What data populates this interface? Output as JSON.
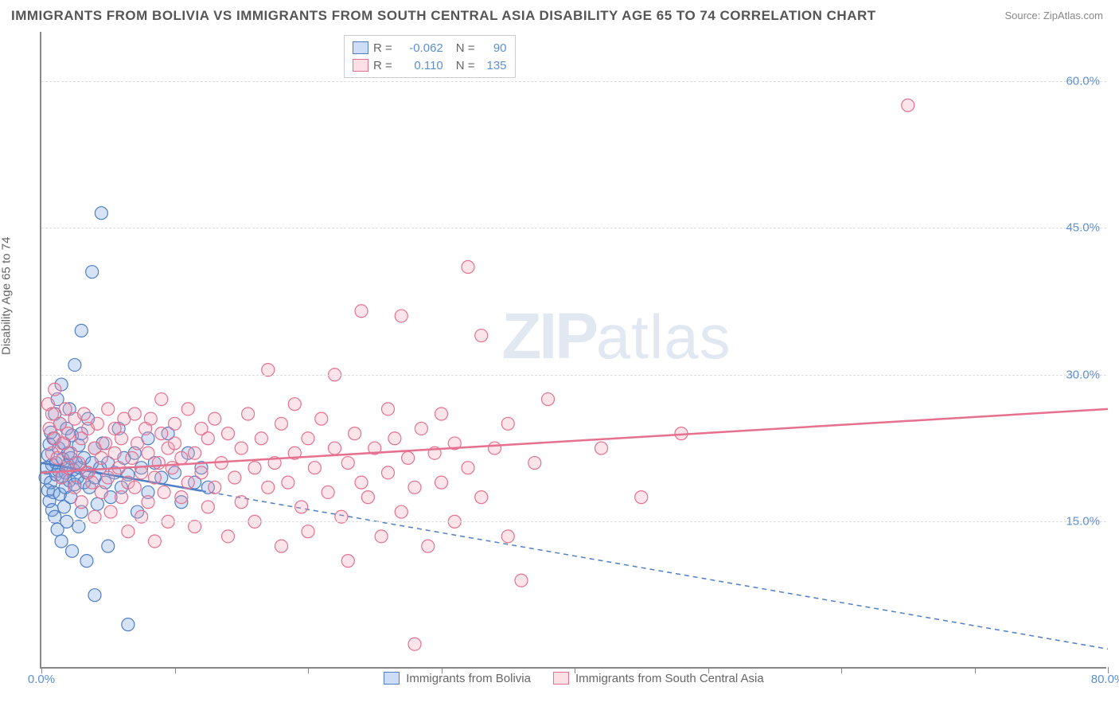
{
  "title": "IMMIGRANTS FROM BOLIVIA VS IMMIGRANTS FROM SOUTH CENTRAL ASIA DISABILITY AGE 65 TO 74 CORRELATION CHART",
  "source": "Source: ZipAtlas.com",
  "ylabel": "Disability Age 65 to 74",
  "watermark_zip": "ZIP",
  "watermark_atlas": "atlas",
  "chart": {
    "type": "scatter",
    "xlim": [
      0,
      80
    ],
    "ylim": [
      0,
      65
    ],
    "x_ticks": [
      0,
      10,
      20,
      30,
      40,
      50,
      60,
      70,
      80
    ],
    "x_tick_labels": {
      "0": "0.0%",
      "80": "80.0%"
    },
    "y_ticks": [
      15,
      30,
      45,
      60
    ],
    "y_tick_labels": {
      "15": "15.0%",
      "30": "30.0%",
      "45": "45.0%",
      "60": "60.0%"
    },
    "background_color": "#ffffff",
    "grid_color": "#dddddd",
    "marker_radius": 8,
    "marker_fill_opacity": 0.28,
    "series": [
      {
        "key": "bolivia",
        "label": "Immigrants from Bolivia",
        "color": "#6a9ae0",
        "stroke": "#4f7fc4",
        "r_value": "-0.062",
        "n_value": "90",
        "trend": {
          "x1": 0,
          "y1": 21.0,
          "x2": 80,
          "y2": 2.0,
          "dash_after_x": 12
        },
        "points": [
          [
            0.3,
            19.5
          ],
          [
            0.4,
            20.5
          ],
          [
            0.5,
            18.2
          ],
          [
            0.5,
            21.8
          ],
          [
            0.6,
            17.1
          ],
          [
            0.6,
            22.9
          ],
          [
            0.7,
            19.0
          ],
          [
            0.7,
            24.1
          ],
          [
            0.8,
            16.2
          ],
          [
            0.8,
            20.8
          ],
          [
            0.9,
            23.5
          ],
          [
            0.9,
            18.0
          ],
          [
            1.0,
            26.0
          ],
          [
            1.0,
            15.5
          ],
          [
            1.1,
            21.0
          ],
          [
            1.1,
            19.8
          ],
          [
            1.2,
            27.5
          ],
          [
            1.2,
            14.2
          ],
          [
            1.3,
            20.2
          ],
          [
            1.3,
            22.5
          ],
          [
            1.4,
            17.8
          ],
          [
            1.4,
            25.0
          ],
          [
            1.5,
            29.0
          ],
          [
            1.5,
            13.0
          ],
          [
            1.6,
            19.6
          ],
          [
            1.6,
            21.4
          ],
          [
            1.7,
            23.0
          ],
          [
            1.7,
            16.5
          ],
          [
            1.8,
            20.0
          ],
          [
            1.8,
            18.5
          ],
          [
            1.9,
            24.5
          ],
          [
            1.9,
            15.0
          ],
          [
            2.0,
            20.8
          ],
          [
            2.0,
            22.0
          ],
          [
            2.1,
            19.2
          ],
          [
            2.1,
            26.5
          ],
          [
            2.2,
            17.5
          ],
          [
            2.2,
            21.5
          ],
          [
            2.3,
            12.0
          ],
          [
            2.3,
            23.8
          ],
          [
            2.4,
            20.3
          ],
          [
            2.5,
            18.8
          ],
          [
            2.5,
            31.0
          ],
          [
            2.6,
            21.0
          ],
          [
            2.7,
            19.5
          ],
          [
            2.8,
            14.5
          ],
          [
            2.8,
            22.8
          ],
          [
            2.9,
            20.5
          ],
          [
            3.0,
            34.5
          ],
          [
            3.0,
            16.0
          ],
          [
            3.0,
            24.0
          ],
          [
            3.2,
            19.0
          ],
          [
            3.2,
            21.5
          ],
          [
            3.4,
            11.0
          ],
          [
            3.4,
            20.0
          ],
          [
            3.5,
            25.5
          ],
          [
            3.6,
            18.5
          ],
          [
            3.8,
            40.5
          ],
          [
            3.8,
            21.0
          ],
          [
            4.0,
            7.5
          ],
          [
            4.0,
            19.5
          ],
          [
            4.0,
            22.5
          ],
          [
            4.2,
            16.8
          ],
          [
            4.4,
            20.5
          ],
          [
            4.5,
            46.5
          ],
          [
            4.6,
            23.0
          ],
          [
            4.8,
            19.0
          ],
          [
            5.0,
            12.5
          ],
          [
            5.0,
            21.0
          ],
          [
            5.2,
            17.5
          ],
          [
            5.5,
            20.0
          ],
          [
            5.8,
            24.5
          ],
          [
            6.0,
            18.5
          ],
          [
            6.2,
            21.5
          ],
          [
            6.5,
            4.5
          ],
          [
            6.5,
            19.8
          ],
          [
            7.0,
            22.0
          ],
          [
            7.2,
            16.0
          ],
          [
            7.5,
            20.5
          ],
          [
            8.0,
            23.5
          ],
          [
            8.0,
            18.0
          ],
          [
            8.5,
            21.0
          ],
          [
            9.0,
            19.5
          ],
          [
            9.5,
            24.0
          ],
          [
            10.0,
            20.0
          ],
          [
            10.5,
            17.0
          ],
          [
            11.0,
            22.0
          ],
          [
            11.5,
            19.0
          ],
          [
            12.0,
            20.5
          ],
          [
            12.5,
            18.5
          ]
        ]
      },
      {
        "key": "sca",
        "label": "Immigrants from South Central Asia",
        "color": "#f5a3b5",
        "stroke": "#e6708e",
        "r_value": "0.110",
        "n_value": "135",
        "trend": {
          "x1": 0,
          "y1": 20.0,
          "x2": 80,
          "y2": 26.5,
          "dash_after_x": 999
        },
        "points": [
          [
            0.5,
            27.0
          ],
          [
            0.6,
            24.5
          ],
          [
            0.8,
            26.0
          ],
          [
            0.8,
            22.0
          ],
          [
            1.0,
            23.5
          ],
          [
            1.0,
            28.5
          ],
          [
            1.2,
            21.5
          ],
          [
            1.4,
            25.0
          ],
          [
            1.5,
            19.5
          ],
          [
            1.6,
            23.0
          ],
          [
            1.8,
            26.5
          ],
          [
            2.0,
            20.5
          ],
          [
            2.0,
            24.0
          ],
          [
            2.2,
            22.0
          ],
          [
            2.5,
            18.5
          ],
          [
            2.5,
            25.5
          ],
          [
            2.8,
            21.0
          ],
          [
            3.0,
            23.5
          ],
          [
            3.0,
            17.0
          ],
          [
            3.2,
            26.0
          ],
          [
            3.5,
            20.0
          ],
          [
            3.5,
            24.5
          ],
          [
            3.8,
            19.0
          ],
          [
            4.0,
            22.5
          ],
          [
            4.0,
            15.5
          ],
          [
            4.2,
            25.0
          ],
          [
            4.5,
            21.5
          ],
          [
            4.5,
            18.0
          ],
          [
            4.8,
            23.0
          ],
          [
            5.0,
            26.5
          ],
          [
            5.0,
            19.5
          ],
          [
            5.2,
            16.0
          ],
          [
            5.5,
            22.0
          ],
          [
            5.5,
            24.5
          ],
          [
            5.8,
            20.5
          ],
          [
            6.0,
            17.5
          ],
          [
            6.0,
            23.5
          ],
          [
            6.2,
            25.5
          ],
          [
            6.5,
            19.0
          ],
          [
            6.5,
            14.0
          ],
          [
            6.8,
            21.5
          ],
          [
            7.0,
            26.0
          ],
          [
            7.0,
            18.5
          ],
          [
            7.2,
            23.0
          ],
          [
            7.5,
            20.0
          ],
          [
            7.5,
            15.5
          ],
          [
            7.8,
            24.5
          ],
          [
            8.0,
            17.0
          ],
          [
            8.0,
            22.0
          ],
          [
            8.2,
            25.5
          ],
          [
            8.5,
            19.5
          ],
          [
            8.5,
            13.0
          ],
          [
            8.8,
            21.0
          ],
          [
            9.0,
            24.0
          ],
          [
            9.0,
            27.5
          ],
          [
            9.2,
            18.0
          ],
          [
            9.5,
            22.5
          ],
          [
            9.5,
            15.0
          ],
          [
            9.8,
            20.5
          ],
          [
            10.0,
            25.0
          ],
          [
            10.0,
            23.0
          ],
          [
            10.5,
            17.5
          ],
          [
            10.5,
            21.5
          ],
          [
            11.0,
            19.0
          ],
          [
            11.0,
            26.5
          ],
          [
            11.5,
            14.5
          ],
          [
            11.5,
            22.0
          ],
          [
            12.0,
            24.5
          ],
          [
            12.0,
            20.0
          ],
          [
            12.5,
            16.5
          ],
          [
            12.5,
            23.5
          ],
          [
            13.0,
            18.5
          ],
          [
            13.0,
            25.5
          ],
          [
            13.5,
            21.0
          ],
          [
            14.0,
            13.5
          ],
          [
            14.0,
            24.0
          ],
          [
            14.5,
            19.5
          ],
          [
            15.0,
            22.5
          ],
          [
            15.0,
            17.0
          ],
          [
            15.5,
            26.0
          ],
          [
            16.0,
            20.5
          ],
          [
            16.0,
            15.0
          ],
          [
            16.5,
            23.5
          ],
          [
            17.0,
            18.5
          ],
          [
            17.0,
            30.5
          ],
          [
            17.5,
            21.0
          ],
          [
            18.0,
            12.5
          ],
          [
            18.0,
            25.0
          ],
          [
            18.5,
            19.0
          ],
          [
            19.0,
            22.0
          ],
          [
            19.0,
            27.0
          ],
          [
            19.5,
            16.5
          ],
          [
            20.0,
            23.5
          ],
          [
            20.0,
            14.0
          ],
          [
            20.5,
            20.5
          ],
          [
            21.0,
            25.5
          ],
          [
            21.5,
            18.0
          ],
          [
            22.0,
            22.5
          ],
          [
            22.0,
            30.0
          ],
          [
            22.5,
            15.5
          ],
          [
            23.0,
            21.0
          ],
          [
            23.0,
            11.0
          ],
          [
            23.5,
            24.0
          ],
          [
            24.0,
            19.0
          ],
          [
            24.0,
            36.5
          ],
          [
            24.5,
            17.5
          ],
          [
            25.0,
            22.5
          ],
          [
            25.5,
            13.5
          ],
          [
            26.0,
            26.5
          ],
          [
            26.0,
            20.0
          ],
          [
            26.5,
            23.5
          ],
          [
            27.0,
            16.0
          ],
          [
            27.0,
            36.0
          ],
          [
            27.5,
            21.5
          ],
          [
            28.0,
            18.5
          ],
          [
            28.0,
            2.5
          ],
          [
            28.5,
            24.5
          ],
          [
            29.0,
            12.5
          ],
          [
            29.5,
            22.0
          ],
          [
            30.0,
            19.0
          ],
          [
            30.0,
            26.0
          ],
          [
            31.0,
            15.0
          ],
          [
            31.0,
            23.0
          ],
          [
            32.0,
            20.5
          ],
          [
            32.0,
            41.0
          ],
          [
            33.0,
            17.5
          ],
          [
            33.0,
            34.0
          ],
          [
            34.0,
            22.5
          ],
          [
            35.0,
            13.5
          ],
          [
            35.0,
            25.0
          ],
          [
            36.0,
            9.0
          ],
          [
            37.0,
            21.0
          ],
          [
            38.0,
            27.5
          ],
          [
            42.0,
            22.5
          ],
          [
            45.0,
            17.5
          ],
          [
            48.0,
            24.0
          ],
          [
            65.0,
            57.5
          ]
        ]
      }
    ]
  }
}
